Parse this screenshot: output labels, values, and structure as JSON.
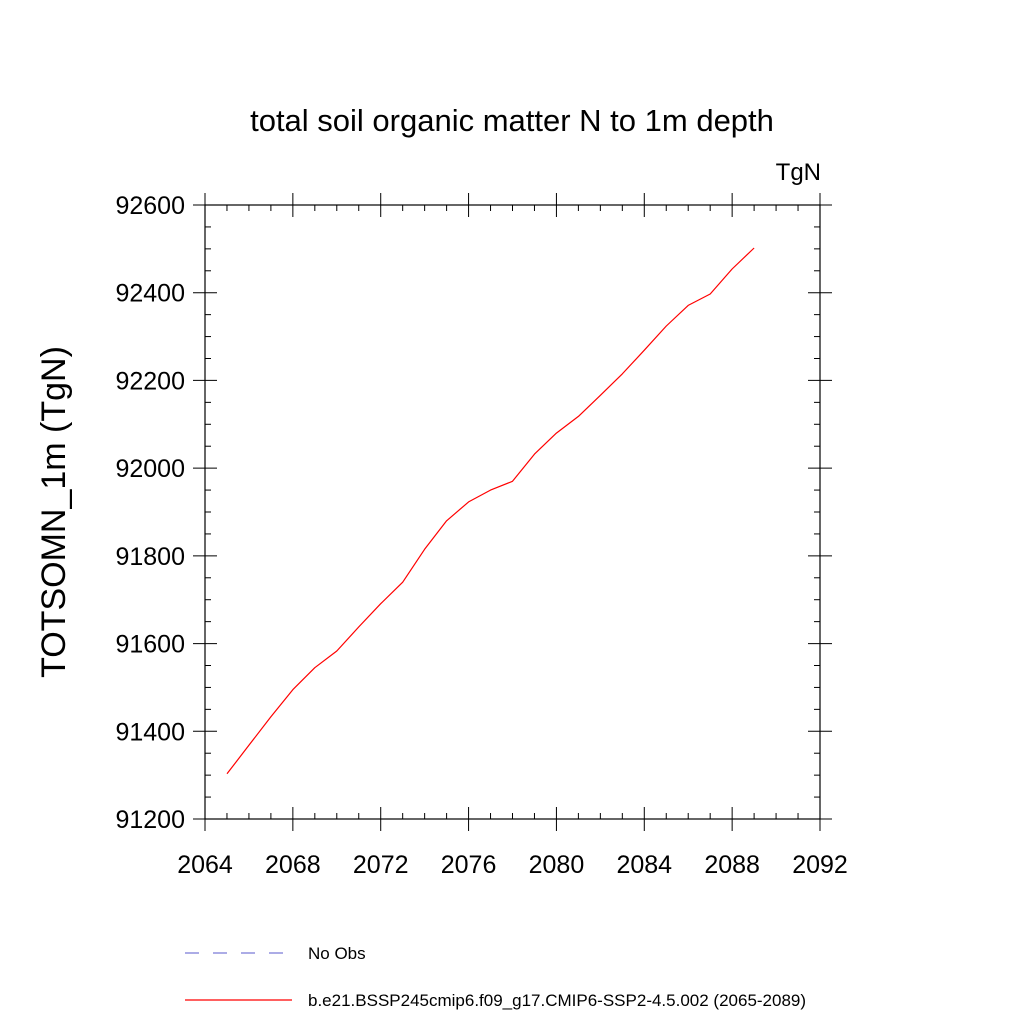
{
  "chart_data": {
    "type": "line",
    "title": "total soil organic matter N to 1m depth",
    "units": "TgN",
    "ylabel": "TOTSOMN_1m  (TgN)",
    "xlabel": "",
    "xlim": [
      2064,
      2092
    ],
    "ylim": [
      91200,
      92600
    ],
    "x_ticks": [
      2064,
      2068,
      2072,
      2076,
      2080,
      2084,
      2088,
      2092
    ],
    "y_ticks": [
      91200,
      91400,
      91600,
      91800,
      92000,
      92200,
      92400,
      92600
    ],
    "x_minor_step": 1,
    "y_minor_step": 50,
    "series": [
      {
        "name": "b.e21.BSSP245cmip6.f09_g17.CMIP6-SSP2-4.5.002 (2065-2089)",
        "color": "#ff0000",
        "style": "solid",
        "x": [
          2065,
          2066,
          2067,
          2068,
          2069,
          2070,
          2071,
          2072,
          2073,
          2074,
          2075,
          2076,
          2077,
          2078,
          2079,
          2080,
          2081,
          2082,
          2083,
          2084,
          2085,
          2086,
          2087,
          2088,
          2089
        ],
        "values": [
          91303,
          91368,
          91433,
          91495,
          91545,
          91583,
          91638,
          91691,
          91740,
          91815,
          91880,
          91923,
          91950,
          91970,
          92032,
          92080,
          92118,
          92166,
          92215,
          92269,
          92324,
          92371,
          92397,
          92454,
          92502
        ]
      }
    ]
  },
  "legend": {
    "items": [
      {
        "label": "No Obs",
        "color": "#7b7bd6",
        "style": "dashed"
      },
      {
        "label": "b.e21.BSSP245cmip6.f09_g17.CMIP6-SSP2-4.5.002 (2065-2089)",
        "color": "#ff0000",
        "style": "solid"
      }
    ]
  }
}
